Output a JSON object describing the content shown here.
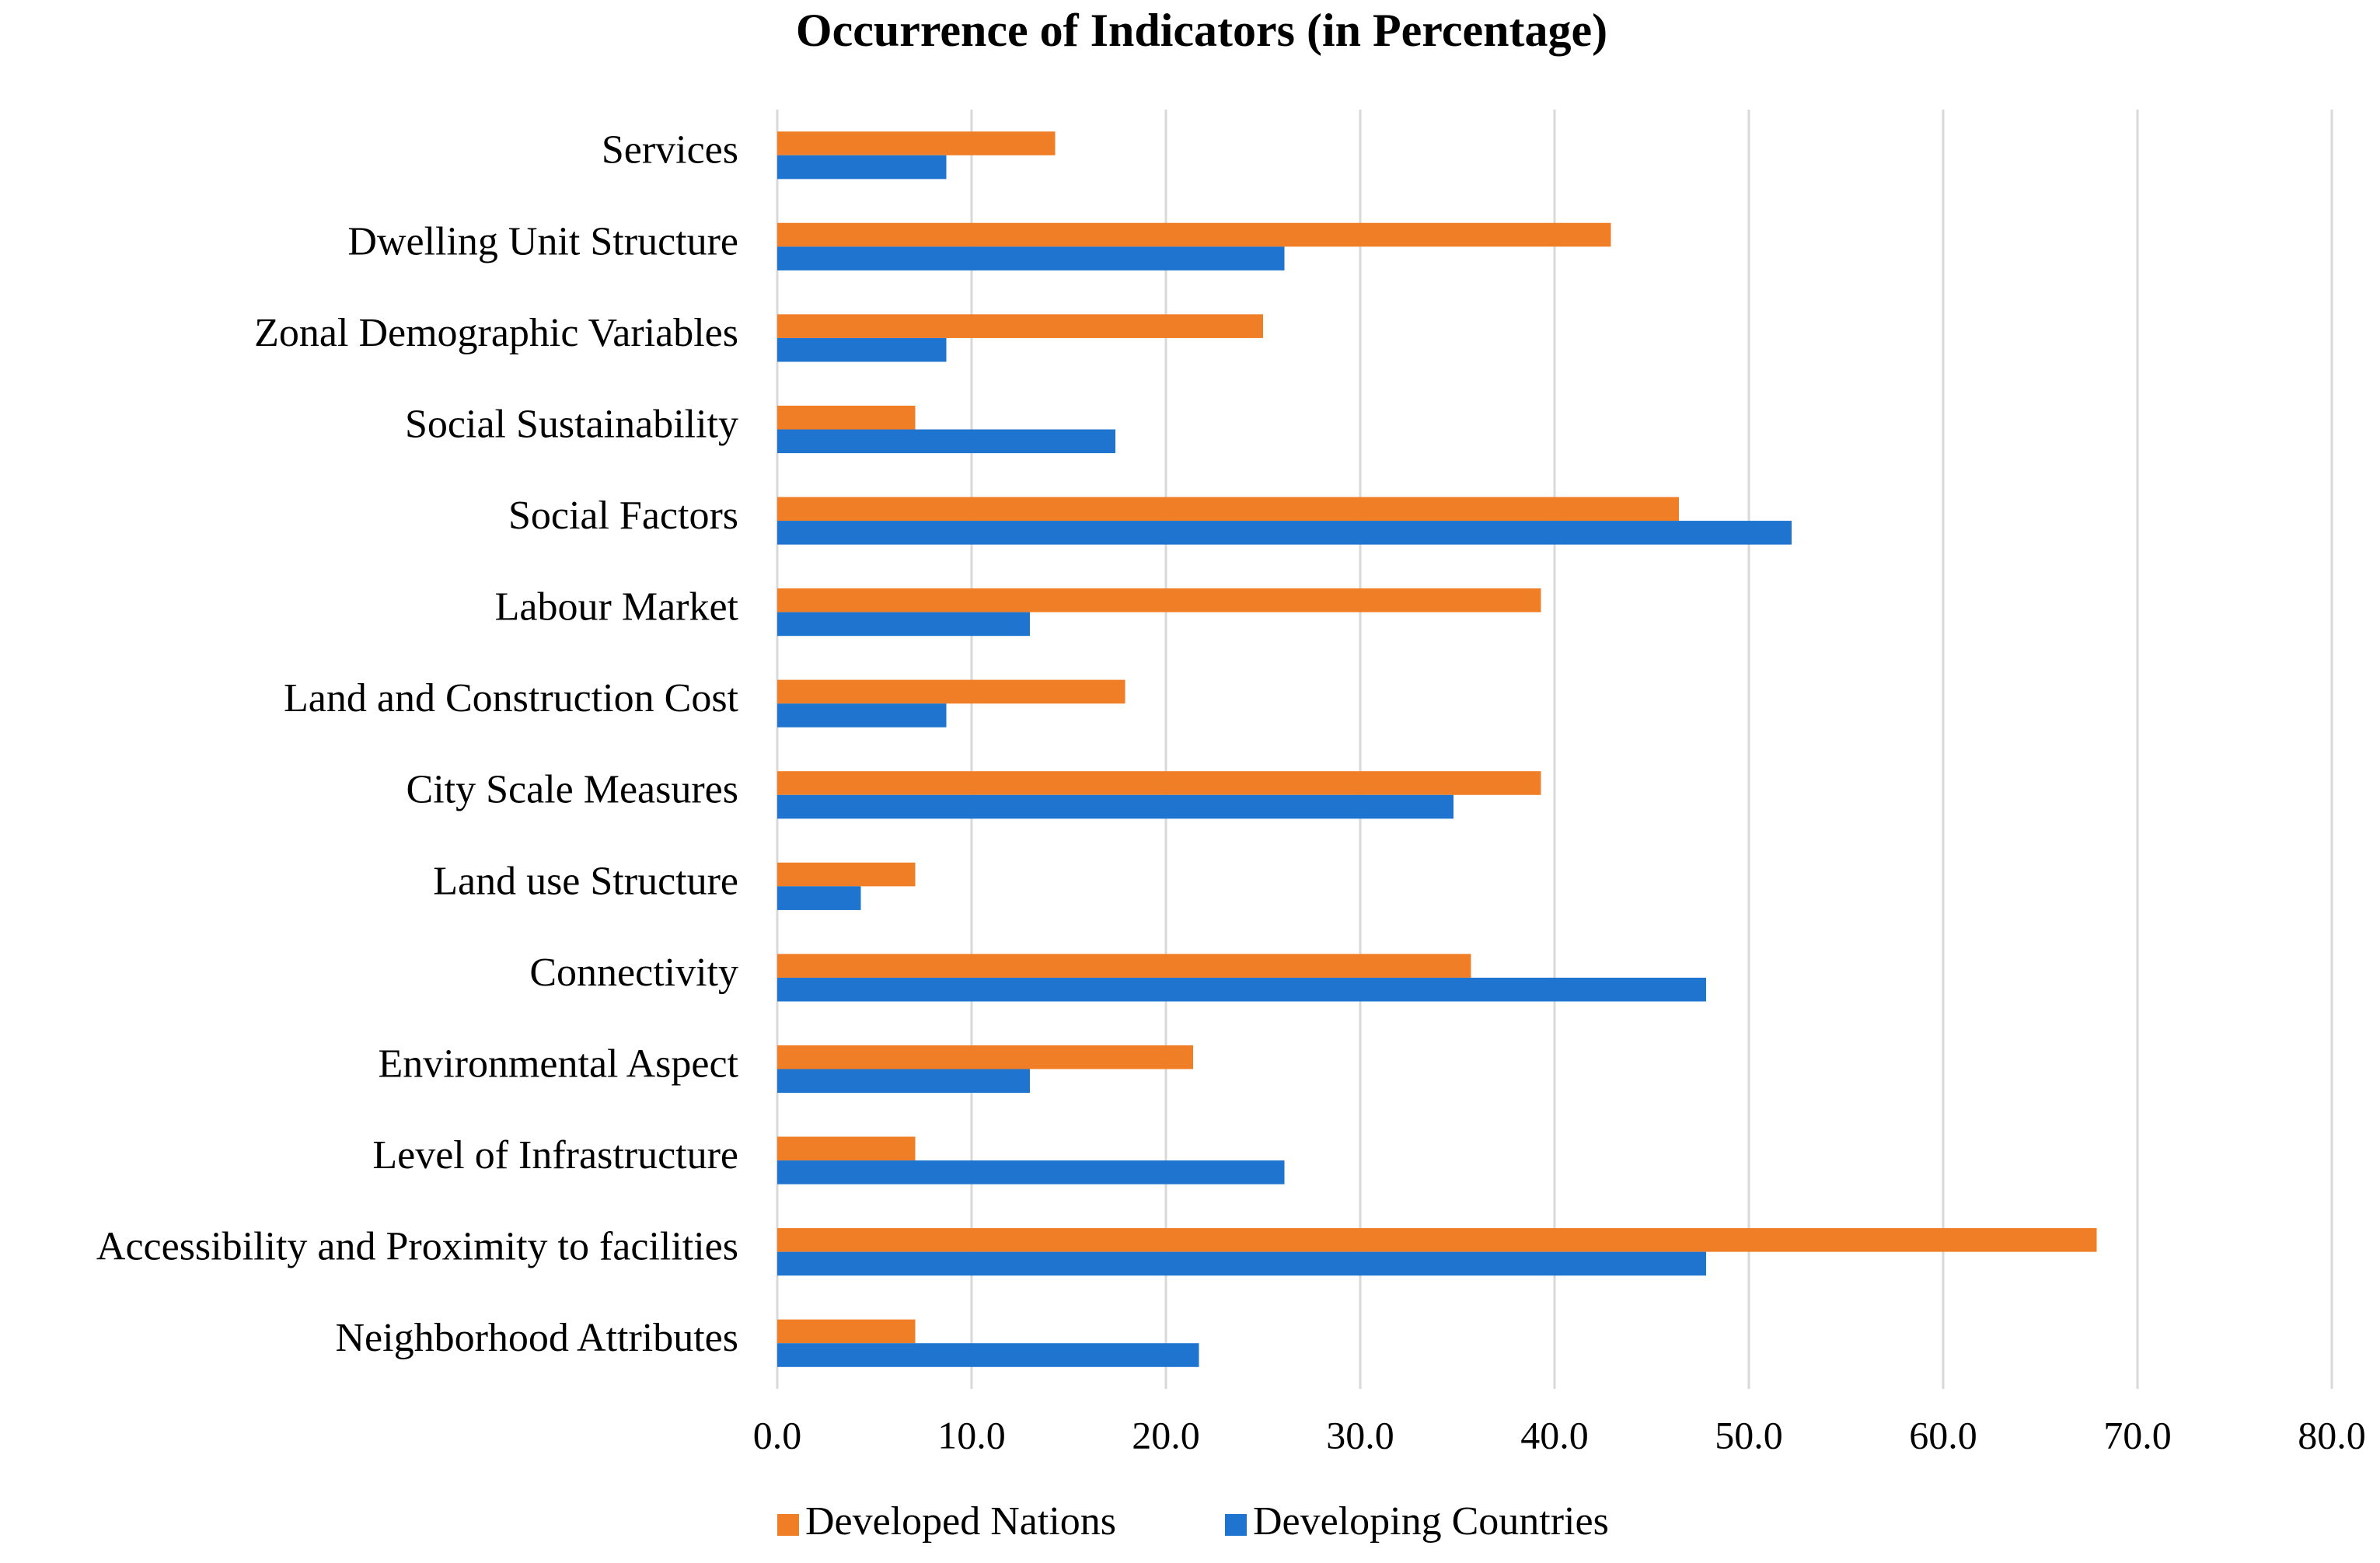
{
  "chart_data": {
    "type": "hbar",
    "title": "Occurrence of Indicators (in Percentage)",
    "categories": [
      "Services",
      "Dwelling Unit Structure",
      "Zonal Demographic Variables",
      "Social Sustainability",
      "Social Factors",
      "Labour Market",
      "Land and Construction Cost",
      "City Scale Measures",
      "Land use Structure",
      "Connectivity",
      "Environmental Aspect",
      "Level of Infrastructure",
      "Accessibility and Proximity to facilities",
      "Neighborhood Attributes"
    ],
    "series": [
      {
        "name": "Developed Nations",
        "color": "#F07E26",
        "values": [
          14.3,
          42.9,
          25.0,
          7.1,
          46.4,
          39.3,
          17.9,
          39.3,
          7.1,
          35.7,
          21.4,
          7.1,
          67.9,
          7.1
        ]
      },
      {
        "name": "Developing Countries",
        "color": "#1F74CF",
        "values": [
          8.7,
          26.1,
          8.7,
          17.4,
          52.2,
          13.0,
          8.7,
          34.8,
          4.3,
          47.8,
          13.0,
          26.1,
          47.8,
          21.7
        ]
      }
    ],
    "xlim": [
      0,
      80
    ],
    "xticks": [
      {
        "value": 0,
        "label": "0.0"
      },
      {
        "value": 10,
        "label": "10.0"
      },
      {
        "value": 20,
        "label": "20.0"
      },
      {
        "value": 30,
        "label": "30.0"
      },
      {
        "value": 40,
        "label": "40.0"
      },
      {
        "value": 50,
        "label": "50.0"
      },
      {
        "value": 60,
        "label": "60.0"
      },
      {
        "value": 70,
        "label": "70.0"
      },
      {
        "value": 80,
        "label": "80.0"
      }
    ],
    "grid": true,
    "legend": "bottom"
  }
}
